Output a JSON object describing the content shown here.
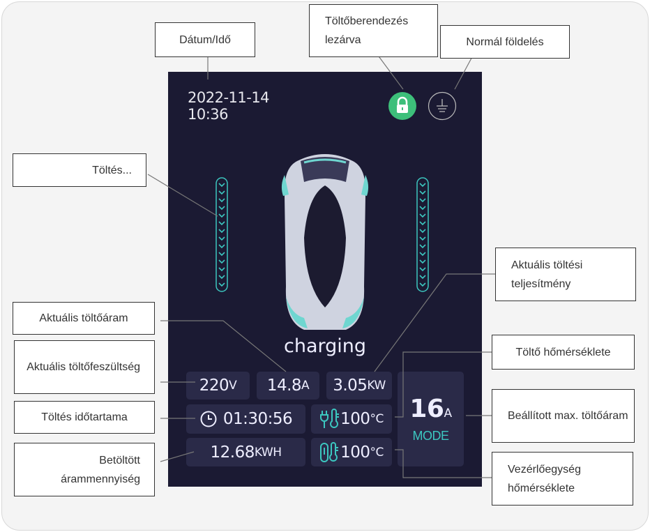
{
  "screen": {
    "date": "2022-11-14",
    "time": "10:36",
    "status": "charging",
    "voltage": {
      "value": "220",
      "unit": "V"
    },
    "current": {
      "value": "14.8",
      "unit": "A"
    },
    "power": {
      "value": "3.05",
      "unit": "KW"
    },
    "duration": "01:30:56",
    "charger_temp": {
      "value": "100",
      "unit": "°C"
    },
    "energy": {
      "value": "12.68",
      "unit": "KWH"
    },
    "controller_temp": {
      "value": "100",
      "unit": "°C"
    },
    "max_current": {
      "value": "16",
      "unit": "A"
    },
    "mode_label": "MODE",
    "colors": {
      "background": "#1b1a33",
      "tile": "#2a2a48",
      "accent": "#3cc7c0",
      "lock": "#3dbf7a"
    }
  },
  "labels": {
    "datetime": "Dátum/Idő",
    "locked": "Töltőberendezés lezárva",
    "grounding": "Normál földelés",
    "charging": "Töltés...",
    "power": "Aktuális töltési teljesítmény",
    "current": "Aktuális töltőáram",
    "voltage": "Aktuális töltőfeszültség",
    "charger_temp": "Töltő hőmérséklete",
    "duration": "Töltés időtartama",
    "max_current": "Beállított max. töltőáram",
    "energy": "Betöltött árammennyiség",
    "controller_temp": "Vezérlőegység hőmérséklete"
  }
}
